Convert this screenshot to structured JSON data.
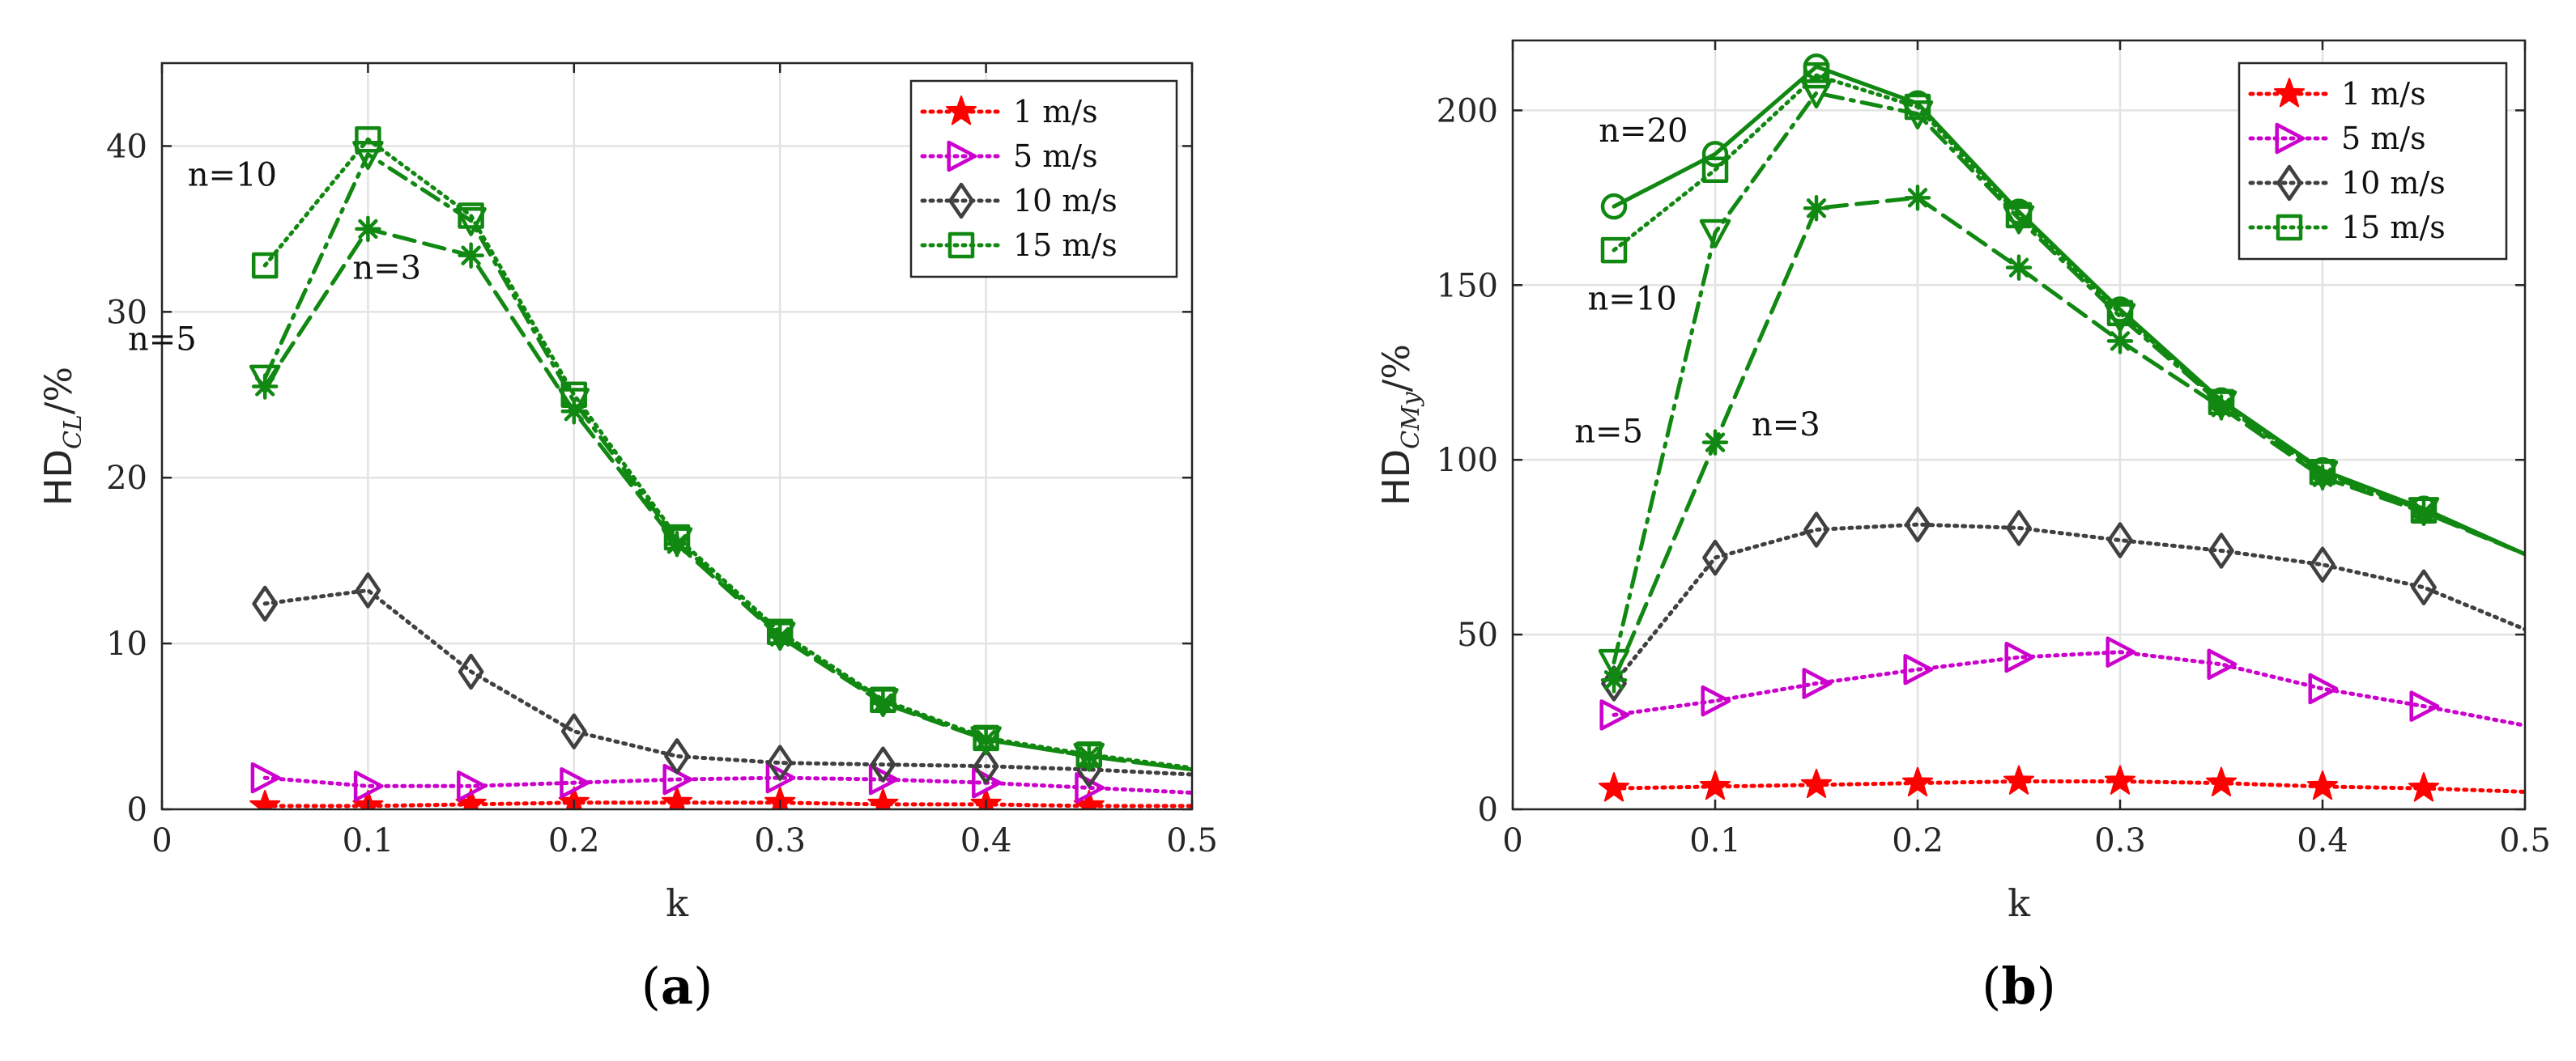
{
  "chart_data": [
    {
      "type": "line",
      "panel_label": {
        "open": "(",
        "letter": "a",
        "close": ")"
      },
      "xlabel": "k",
      "ylabel": {
        "main": "HD",
        "sub": "CL",
        "unit": "/%"
      },
      "xlim": [
        0,
        0.5
      ],
      "ylim": [
        0,
        45
      ],
      "xticks": [
        0,
        0.1,
        0.2,
        0.3,
        0.4,
        0.5
      ],
      "xtick_labels": [
        "0",
        "0.1",
        "0.2",
        "0.3",
        "0.4",
        "0.5"
      ],
      "yticks": [
        0,
        10,
        20,
        30,
        40
      ],
      "ytick_labels": [
        "0",
        "10",
        "20",
        "30",
        "40"
      ],
      "grid": true,
      "legend_position": "top-right",
      "legend": [
        {
          "label": "1 m/s",
          "color": "#ff0000",
          "marker": "star"
        },
        {
          "label": "5 m/s",
          "color": "#cc00cc",
          "marker": "triangle-right"
        },
        {
          "label": "10 m/s",
          "color": "#404040",
          "marker": "diamond"
        },
        {
          "label": "15 m/s",
          "color": "#118811",
          "marker": "square"
        }
      ],
      "series": [
        {
          "name": "1 m/s",
          "color": "#ff0000",
          "dash": "dotted",
          "marker": "star",
          "x": [
            0.05,
            0.1,
            0.15,
            0.2,
            0.25,
            0.3,
            0.35,
            0.4,
            0.45,
            0.5
          ],
          "y": [
            0.2,
            0.2,
            0.3,
            0.4,
            0.4,
            0.4,
            0.3,
            0.3,
            0.2,
            0.2
          ],
          "marker_count": 9
        },
        {
          "name": "5 m/s",
          "color": "#cc00cc",
          "dash": "dotted",
          "marker": "triangle-right",
          "x": [
            0.05,
            0.1,
            0.15,
            0.2,
            0.25,
            0.3,
            0.35,
            0.4,
            0.45,
            0.5
          ],
          "y": [
            1.9,
            1.4,
            1.4,
            1.6,
            1.8,
            1.9,
            1.8,
            1.6,
            1.3,
            1.0
          ],
          "marker_count": 9
        },
        {
          "name": "10 m/s",
          "color": "#404040",
          "dash": "dotted",
          "marker": "diamond",
          "x": [
            0.05,
            0.1,
            0.15,
            0.2,
            0.25,
            0.3,
            0.35,
            0.4,
            0.45,
            0.5
          ],
          "y": [
            12.4,
            13.2,
            8.3,
            4.7,
            3.2,
            2.8,
            2.7,
            2.6,
            2.4,
            2.1
          ],
          "marker_count": 9
        },
        {
          "name": "15 m/s, n=10",
          "color": "#118811",
          "dash": "dotted",
          "marker": "square",
          "x": [
            0.05,
            0.1,
            0.15,
            0.2,
            0.25,
            0.3,
            0.35,
            0.4,
            0.45,
            0.5
          ],
          "y": [
            32.8,
            40.4,
            35.8,
            25.0,
            16.4,
            10.7,
            6.6,
            4.3,
            3.3,
            2.5
          ],
          "marker_count": 9
        },
        {
          "name": "15 m/s, n=5",
          "color": "#118811",
          "dash": "dashdot",
          "marker": "triangle-down",
          "x": [
            0.05,
            0.1,
            0.15,
            0.2,
            0.25,
            0.3,
            0.35,
            0.4,
            0.45,
            0.5
          ],
          "y": [
            26.0,
            39.5,
            35.5,
            24.6,
            16.2,
            10.5,
            6.5,
            4.2,
            3.2,
            2.4
          ],
          "marker_count": 9
        },
        {
          "name": "15 m/s, n=3",
          "color": "#118811",
          "dash": "dashed",
          "marker": "asterisk",
          "x": [
            0.05,
            0.1,
            0.15,
            0.2,
            0.25,
            0.3,
            0.35,
            0.4,
            0.45,
            0.5
          ],
          "y": [
            25.5,
            35.0,
            33.4,
            24.0,
            16.0,
            10.4,
            6.4,
            4.2,
            3.2,
            2.4
          ],
          "marker_count": 9
        }
      ],
      "annotations": [
        {
          "text": "n=10",
          "x": 0.0125,
          "y": 37.6
        },
        {
          "text": "n=3",
          "x": 0.0925,
          "y": 32.0
        },
        {
          "text": "n=5",
          "x": -0.0165,
          "y": 27.7
        }
      ]
    },
    {
      "type": "line",
      "panel_label": {
        "open": "(",
        "letter": "b",
        "close": ")"
      },
      "xlabel": "k",
      "ylabel": {
        "main": "HD",
        "sub": "CMy",
        "unit": "/%"
      },
      "xlim": [
        0,
        0.5
      ],
      "ylim": [
        0,
        220
      ],
      "xticks": [
        0,
        0.1,
        0.2,
        0.3,
        0.4,
        0.5
      ],
      "xtick_labels": [
        "0",
        "0.1",
        "0.2",
        "0.3",
        "0.4",
        "0.5"
      ],
      "yticks": [
        0,
        50,
        100,
        150,
        200
      ],
      "ytick_labels": [
        "0",
        "50",
        "100",
        "150",
        "200"
      ],
      "grid": true,
      "legend_position": "top-right",
      "legend": [
        {
          "label": "1 m/s",
          "color": "#ff0000",
          "marker": "star"
        },
        {
          "label": "5 m/s",
          "color": "#cc00cc",
          "marker": "triangle-right"
        },
        {
          "label": "10 m/s",
          "color": "#404040",
          "marker": "diamond"
        },
        {
          "label": "15 m/s",
          "color": "#118811",
          "marker": "square"
        }
      ],
      "series": [
        {
          "name": "1 m/s",
          "color": "#ff0000",
          "dash": "dotted",
          "marker": "star",
          "x": [
            0.05,
            0.1,
            0.15,
            0.2,
            0.25,
            0.3,
            0.35,
            0.4,
            0.45,
            0.5
          ],
          "y": [
            6,
            6.5,
            7,
            7.5,
            8,
            8,
            7.5,
            6.5,
            6,
            5
          ],
          "marker_count": 9
        },
        {
          "name": "5 m/s",
          "color": "#cc00cc",
          "dash": "dotted",
          "marker": "triangle-right",
          "x": [
            0.05,
            0.1,
            0.15,
            0.2,
            0.25,
            0.3,
            0.35,
            0.4,
            0.45,
            0.5
          ],
          "y": [
            27,
            31,
            36,
            40,
            43.5,
            45,
            41.5,
            34.5,
            29.5,
            24
          ],
          "marker_count": 9
        },
        {
          "name": "10 m/s",
          "color": "#404040",
          "dash": "dotted",
          "marker": "diamond",
          "x": [
            0.05,
            0.1,
            0.15,
            0.2,
            0.25,
            0.3,
            0.35,
            0.4,
            0.45,
            0.5
          ],
          "y": [
            36,
            72,
            80,
            81.5,
            80.5,
            77,
            74,
            70,
            63.5,
            51.5
          ],
          "marker_count": 9
        },
        {
          "name": "15 m/s, n=20",
          "color": "#118811",
          "dash": "solid",
          "marker": "circle",
          "x": [
            0.05,
            0.1,
            0.15,
            0.2,
            0.25,
            0.3,
            0.35,
            0.4,
            0.45,
            0.5
          ],
          "y": [
            172.5,
            187.5,
            212.5,
            202,
            171,
            143,
            117,
            97,
            86,
            73
          ],
          "marker_count": 9
        },
        {
          "name": "15 m/s, n=10",
          "color": "#118811",
          "dash": "dotted",
          "marker": "square",
          "x": [
            0.05,
            0.1,
            0.15,
            0.2,
            0.25,
            0.3,
            0.35,
            0.4,
            0.45,
            0.5
          ],
          "y": [
            160,
            183,
            210,
            201,
            170,
            142,
            116.5,
            96.5,
            85.5,
            73
          ],
          "marker_count": 9
        },
        {
          "name": "15 m/s, n=5",
          "color": "#118811",
          "dash": "dashdot",
          "marker": "triangle-down",
          "x": [
            0.05,
            0.1,
            0.15,
            0.2,
            0.25,
            0.3,
            0.35,
            0.4,
            0.45,
            0.5
          ],
          "y": [
            42,
            165,
            205,
            199,
            169,
            141,
            116,
            96,
            85.5,
            73
          ],
          "marker_count": 9
        },
        {
          "name": "15 m/s, n=3",
          "color": "#118811",
          "dash": "dashed",
          "marker": "asterisk",
          "x": [
            0.05,
            0.1,
            0.15,
            0.2,
            0.25,
            0.3,
            0.35,
            0.4,
            0.45,
            0.5
          ],
          "y": [
            37,
            105,
            172,
            175,
            155,
            134,
            115,
            95,
            85,
            73
          ],
          "marker_count": 9
        }
      ],
      "annotations": [
        {
          "text": "n=20",
          "x": 0.0425,
          "y": 191
        },
        {
          "text": "n=10",
          "x": 0.037,
          "y": 143
        },
        {
          "text": "n=5",
          "x": 0.0305,
          "y": 105
        },
        {
          "text": "n=3",
          "x": 0.118,
          "y": 107
        }
      ]
    }
  ]
}
